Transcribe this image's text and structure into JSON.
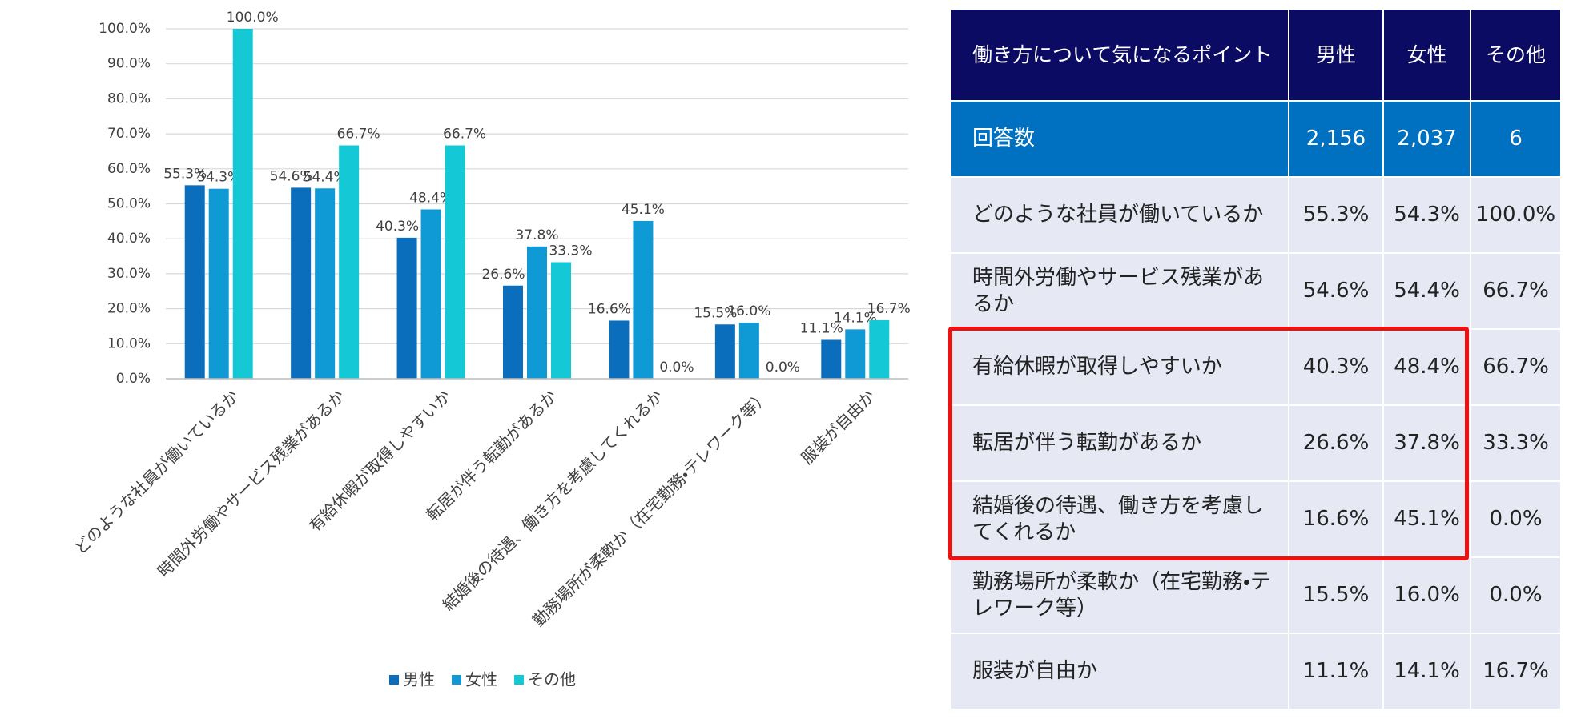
{
  "chart_data": {
    "type": "bar",
    "categories": [
      "どのような社員が働いているか",
      "時間外労働やサービス残業があるか",
      "有給休暇が取得しやすいか",
      "転居が伴う転勤があるか",
      "結婚後の待遇、働き方を考慮してくれるか",
      "勤務場所が柔軟か（在宅勤務・テレワーク等）",
      "服装が自由か"
    ],
    "series": [
      {
        "name": "男性",
        "color": "#0a6ebd",
        "values": [
          55.3,
          54.6,
          40.3,
          26.6,
          16.6,
          15.5,
          11.1
        ],
        "value_labels": [
          "55.3%",
          "54.6%",
          "40.3%",
          "26.6%",
          "16.6%",
          "15.5%",
          "11.1%"
        ]
      },
      {
        "name": "女性",
        "color": "#0f9ad6",
        "values": [
          54.3,
          54.4,
          48.4,
          37.8,
          45.1,
          16.0,
          14.1
        ],
        "value_labels": [
          "54.3%",
          "54.4%",
          "48.4%",
          "37.8%",
          "45.1%",
          "16.0%",
          "14.1%"
        ]
      },
      {
        "name": "その他",
        "color": "#14c8d6",
        "values": [
          100.0,
          66.7,
          66.7,
          33.3,
          0.0,
          0.0,
          16.7
        ],
        "value_labels": [
          "100.0%",
          "66.7%",
          "66.7%",
          "33.3%",
          "0.0%",
          "0.0%",
          "16.7%"
        ]
      }
    ],
    "ylim": [
      0,
      100
    ],
    "yticks": [
      {
        "value": 0,
        "label": "0.0%"
      },
      {
        "value": 10,
        "label": "10.0%"
      },
      {
        "value": 20,
        "label": "20.0%"
      },
      {
        "value": 30,
        "label": "30.0%"
      },
      {
        "value": 40,
        "label": "40.0%"
      },
      {
        "value": 50,
        "label": "50.0%"
      },
      {
        "value": 60,
        "label": "60.0%"
      },
      {
        "value": 70,
        "label": "70.0%"
      },
      {
        "value": 80,
        "label": "80.0%"
      },
      {
        "value": 90,
        "label": "90.0%"
      },
      {
        "value": 100,
        "label": "100.0%"
      }
    ],
    "grid": true,
    "legend": "bottom"
  },
  "table": {
    "header": [
      "働き方について気になるポイント",
      "男性",
      "女性",
      "その他"
    ],
    "rows": [
      [
        "回答数",
        "2,156",
        "2,037",
        "6"
      ],
      [
        "どのような社員が働いているか",
        "55.3%",
        "54.3%",
        "100.0%"
      ],
      [
        "時間外労働やサービス残業があるか",
        "54.6%",
        "54.4%",
        "66.7%"
      ],
      [
        "有給休暇が取得しやすいか",
        "40.3%",
        "48.4%",
        "66.7%"
      ],
      [
        "転居が伴う転勤があるか",
        "26.6%",
        "37.8%",
        "33.3%"
      ],
      [
        "結婚後の待遇、働き方を考慮してくれるか",
        "16.6%",
        "45.1%",
        "0.0%"
      ],
      [
        "勤務場所が柔軟か（在宅勤務・テレワーク等）",
        "15.5%",
        "16.0%",
        "0.0%"
      ],
      [
        "服装が自由か",
        "11.1%",
        "14.1%",
        "16.7%"
      ]
    ]
  }
}
